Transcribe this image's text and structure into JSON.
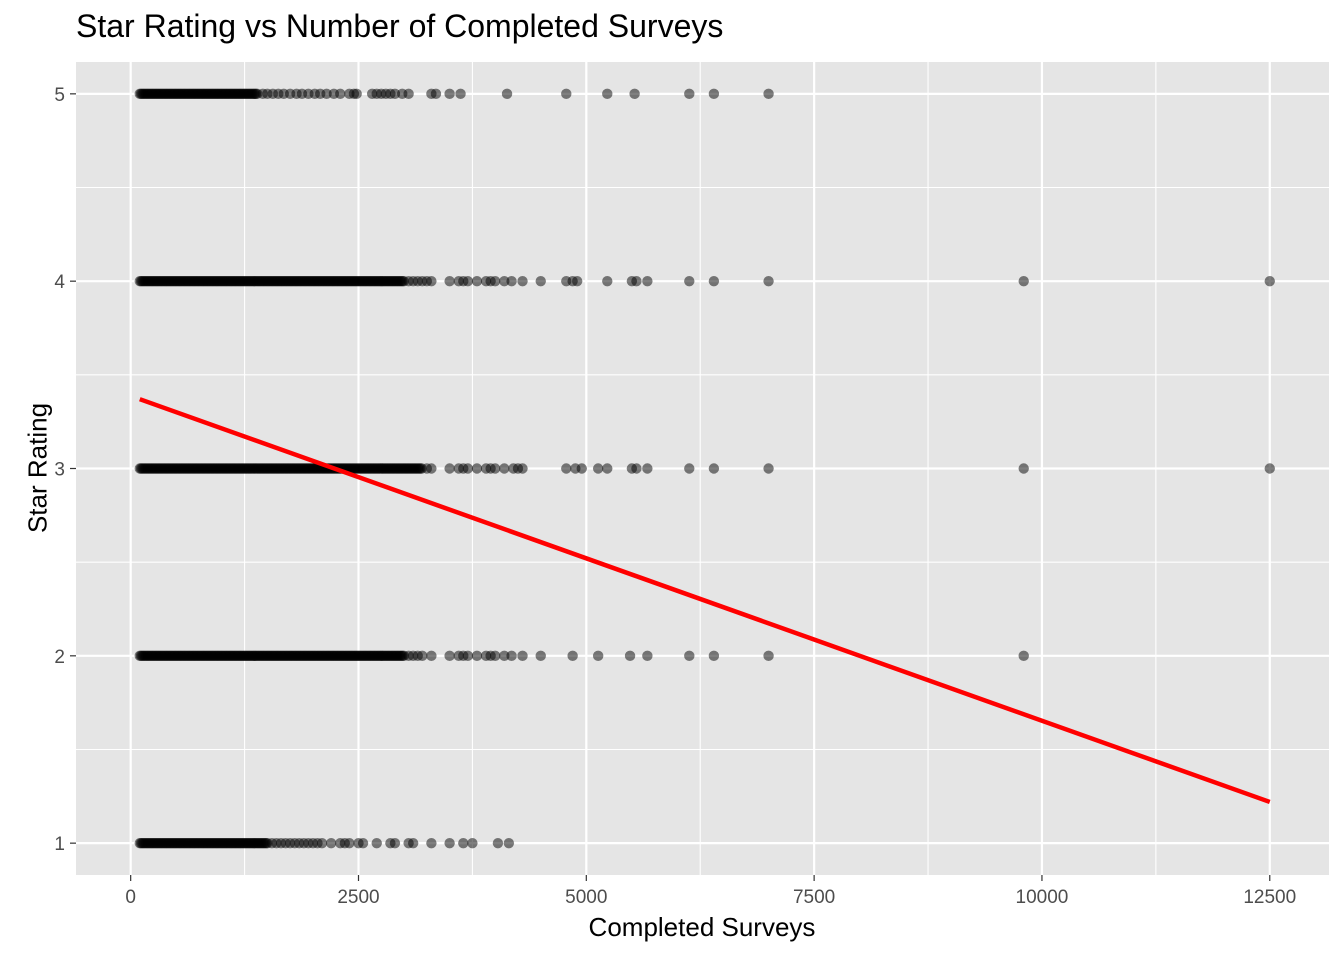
{
  "chart_data": {
    "type": "scatter",
    "title": "Star Rating vs Number of Completed Surveys",
    "xlabel": "Completed Surveys",
    "ylabel": "Star Rating",
    "xlim": [
      -600,
      13150
    ],
    "ylim": [
      0.83,
      5.17
    ],
    "x_ticks": [
      0,
      2500,
      5000,
      7500,
      10000,
      12500
    ],
    "x_tick_labels": [
      "0",
      "2500",
      "5000",
      "7500",
      "10000",
      "12500"
    ],
    "y_ticks": [
      1,
      2,
      3,
      4,
      5
    ],
    "y_tick_labels": [
      "1",
      "2",
      "3",
      "4",
      "5"
    ],
    "grid": true,
    "point_color": "#000000",
    "point_opacity": 0.5,
    "panel_background": "#E5E5E5",
    "trend_line": {
      "color": "#FF0000",
      "x": [
        100,
        12500
      ],
      "y": [
        3.37,
        1.22
      ]
    },
    "series": [
      {
        "star": 5,
        "dense_range": [
          100,
          1400
        ],
        "x": [
          1450,
          1500,
          1560,
          1620,
          1680,
          1750,
          1820,
          1880,
          1950,
          2020,
          2080,
          2150,
          2230,
          2300,
          2400,
          2450,
          2480,
          2650,
          2700,
          2750,
          2800,
          2850,
          2900,
          2980,
          3050,
          3300,
          3350,
          3500,
          3620,
          4130,
          4780,
          5230,
          5530,
          6130,
          6400,
          7000
        ]
      },
      {
        "star": 4,
        "dense_range": [
          100,
          3000
        ],
        "x": [
          3050,
          3100,
          3150,
          3200,
          3250,
          3300,
          3500,
          3600,
          3650,
          3700,
          3800,
          3900,
          3950,
          4000,
          4100,
          4180,
          4300,
          4500,
          4780,
          4850,
          4900,
          5230,
          5500,
          5550,
          5670,
          6130,
          6400,
          7000,
          9800,
          12500
        ]
      },
      {
        "star": 3,
        "dense_range": [
          100,
          3200
        ],
        "x": [
          3250,
          3300,
          3500,
          3600,
          3650,
          3700,
          3800,
          3900,
          3950,
          4000,
          4100,
          4200,
          4250,
          4300,
          4780,
          4880,
          4950,
          5130,
          5230,
          5500,
          5550,
          5670,
          6130,
          6400,
          7000,
          9800,
          12500
        ]
      },
      {
        "star": 2,
        "dense_range": [
          100,
          3000
        ],
        "x": [
          3050,
          3100,
          3150,
          3200,
          3300,
          3500,
          3600,
          3650,
          3700,
          3800,
          3900,
          3950,
          4000,
          4100,
          4180,
          4300,
          4500,
          4850,
          5130,
          5480,
          5670,
          6130,
          6400,
          7000,
          9800
        ]
      },
      {
        "star": 1,
        "dense_range": [
          100,
          1500
        ],
        "x": [
          1550,
          1600,
          1650,
          1700,
          1750,
          1800,
          1850,
          1900,
          1950,
          2000,
          2050,
          2100,
          2200,
          2300,
          2350,
          2400,
          2500,
          2550,
          2700,
          2850,
          2900,
          3050,
          3100,
          3300,
          3500,
          3650,
          3750,
          4030,
          4150
        ]
      }
    ]
  }
}
